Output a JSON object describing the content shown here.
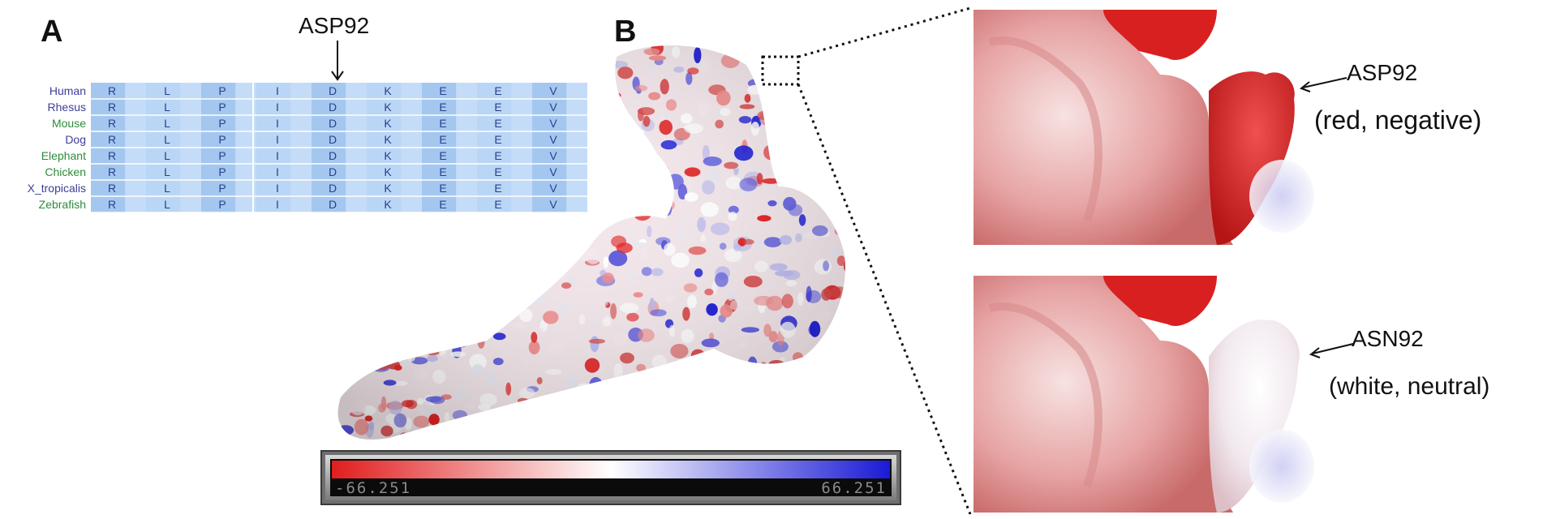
{
  "panel_a": {
    "label": "A",
    "arrow_label": "ASP92",
    "rows": [
      {
        "species": "Human",
        "species_color": "#3b3f9a",
        "residues": [
          "R",
          "L",
          "P",
          "I",
          "D",
          "K",
          "E",
          "E",
          "V"
        ]
      },
      {
        "species": "Rhesus",
        "species_color": "#3b3f9a",
        "residues": [
          "R",
          "L",
          "P",
          "I",
          "D",
          "K",
          "E",
          "E",
          "V"
        ]
      },
      {
        "species": "Mouse",
        "species_color": "#2e8b3a",
        "residues": [
          "R",
          "L",
          "P",
          "I",
          "D",
          "K",
          "E",
          "E",
          "V"
        ]
      },
      {
        "species": "Dog",
        "species_color": "#3b3f9a",
        "residues": [
          "R",
          "L",
          "P",
          "I",
          "D",
          "K",
          "E",
          "E",
          "V"
        ]
      },
      {
        "species": "Elephant",
        "species_color": "#2e8b3a",
        "residues": [
          "R",
          "L",
          "P",
          "I",
          "D",
          "K",
          "E",
          "E",
          "V"
        ]
      },
      {
        "species": "Chicken",
        "species_color": "#2e8b3a",
        "residues": [
          "R",
          "L",
          "P",
          "I",
          "D",
          "K",
          "E",
          "E",
          "V"
        ]
      },
      {
        "species": "X_tropicalis",
        "species_color": "#3b3f9a",
        "residues": [
          "R",
          "L",
          "P",
          "I",
          "D",
          "K",
          "E",
          "E",
          "V"
        ]
      },
      {
        "species": "Zebrafish",
        "species_color": "#2e8b3a",
        "residues": [
          "R",
          "L",
          "P",
          "I",
          "D",
          "K",
          "E",
          "E",
          "V"
        ]
      }
    ]
  },
  "panel_b": {
    "label": "B",
    "scale_min": "-66.251",
    "scale_max": "66.251",
    "colors": {
      "negative": "#e11d1d",
      "neutral": "#ffffff",
      "positive": "#1a1ad6"
    },
    "zoom_top": {
      "residue": "ASP92",
      "note": "(red, negative)"
    },
    "zoom_bottom": {
      "residue": "ASN92",
      "note": "(white, neutral)"
    }
  }
}
